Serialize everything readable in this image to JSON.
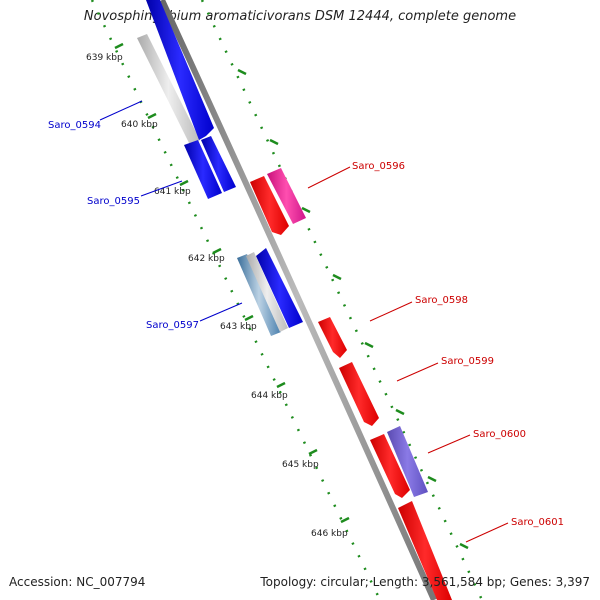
{
  "title": "Novosphingobium aromaticivorans DSM 12444, complete genome",
  "accession": "Accession: NC_007794",
  "summary": "Topology: circular; Length: 3,561,584 bp; Genes: 3,397",
  "colors": {
    "forward_gene": "#0000ee",
    "reverse_gene": "#ee0000",
    "gene_highlight_pink": "#ee1493",
    "gene_highlight_purple": "#6a5acd",
    "gene_highlight_steel": "#4682b4",
    "backbone": "#808080",
    "tick": "#1e8c1e"
  },
  "scale_ticks": [
    "639 kbp",
    "640 kbp",
    "641 kbp",
    "642 kbp",
    "643 kbp",
    "644 kbp",
    "645 kbp",
    "646 kbp"
  ],
  "labels": {
    "saro_0594": "Saro_0594",
    "saro_0595": "Saro_0595",
    "saro_0596": "Saro_0596",
    "saro_0597": "Saro_0597",
    "saro_0598": "Saro_0598",
    "saro_0599": "Saro_0599",
    "saro_0600": "Saro_0600",
    "saro_0601": "Saro_0601"
  }
}
